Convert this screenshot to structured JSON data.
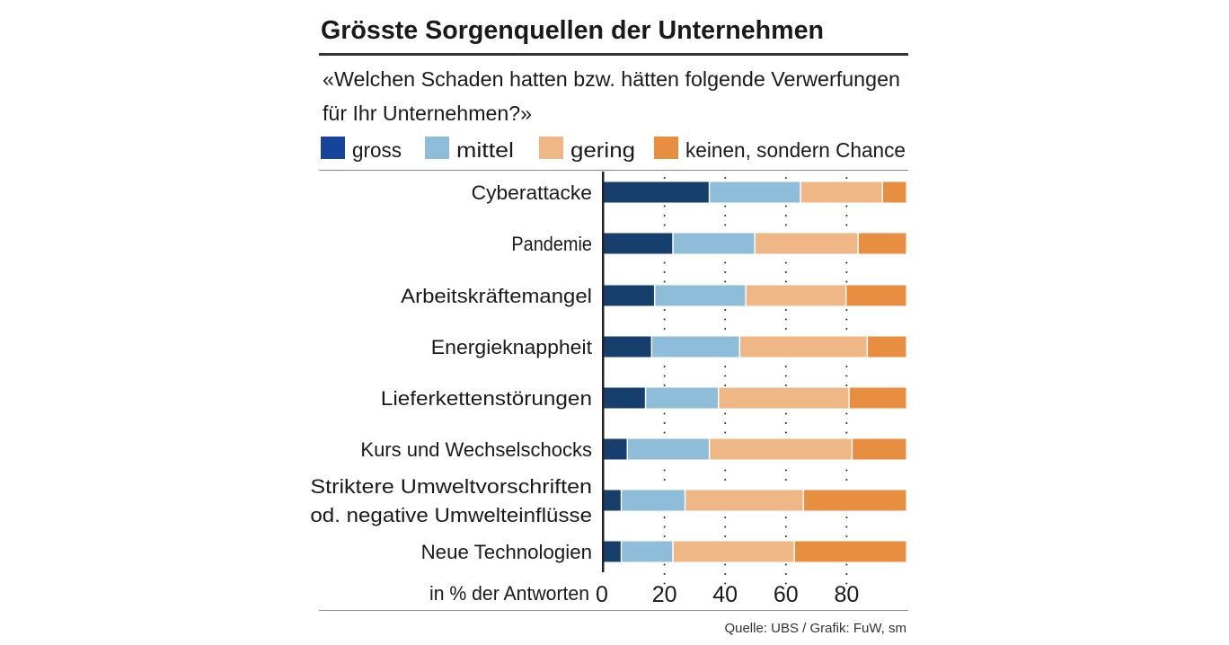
{
  "chart_data": {
    "type": "bar",
    "stacked": true,
    "orientation": "horizontal",
    "title": "Grösste Sorgenquellen der Unternehmen",
    "subtitle": [
      "«Welchen Schaden hatten bzw. hätten folgende Verwerfungen",
      "für Ihr Unternehmen?»"
    ],
    "xlabel": "in % der Antworten",
    "xlim": [
      0,
      100
    ],
    "xticks": [
      "0",
      "20",
      "40",
      "60",
      "80"
    ],
    "grid": "dotted vertical",
    "legend_position": "top",
    "categories": [
      [
        "Cyberattacke"
      ],
      [
        "Pandemie"
      ],
      [
        "Arbeitskräftemangel"
      ],
      [
        "Energieknappheit"
      ],
      [
        "Lieferkettenstörungen"
      ],
      [
        "Kurs und Wechselschocks"
      ],
      [
        "Striktere Umweltvorschriften",
        "od. negative Umwelteinflüsse"
      ],
      [
        "Neue Technologien"
      ]
    ],
    "series": [
      {
        "name": "gross",
        "color": "#173f6e",
        "legend_color": "#16449a",
        "values": [
          35,
          23,
          17,
          16,
          14,
          8,
          6,
          6
        ]
      },
      {
        "name": "mittel",
        "color": "#8dbdd8",
        "values": [
          30,
          27,
          30,
          29,
          24,
          27,
          21,
          17
        ]
      },
      {
        "name": "gering",
        "color": "#efb686",
        "values": [
          27,
          34,
          33,
          42,
          43,
          47,
          39,
          40
        ]
      },
      {
        "name": "keinen, sondern Chance",
        "color": "#e88e41",
        "values": [
          8,
          16,
          20,
          13,
          19,
          18,
          34,
          37
        ]
      }
    ],
    "source": "Quelle: UBS / Grafik: FuW, sm"
  }
}
